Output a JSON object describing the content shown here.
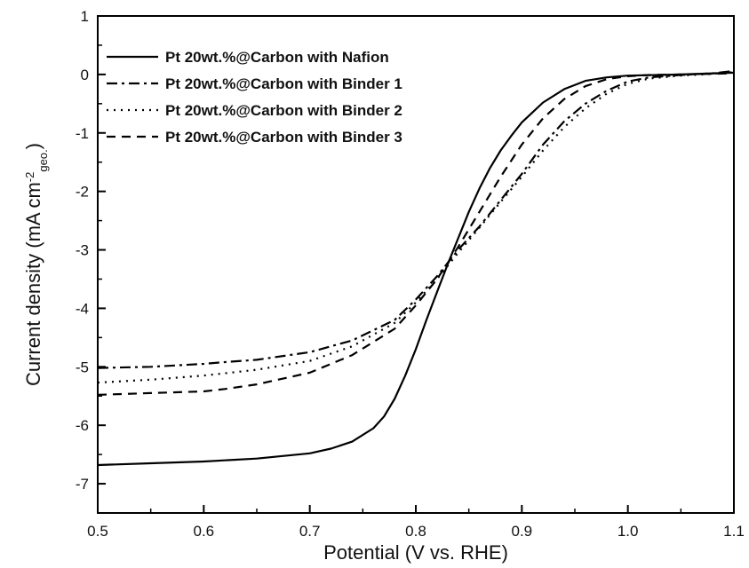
{
  "chart_data": {
    "type": "line",
    "xlabel": "Potential (V vs. RHE)",
    "ylabel": "Current density (mA cm^-2 geo.)",
    "ylabel_parts": {
      "main": "Current density (mA cm",
      "sup": "-2",
      "sub": "geo.",
      "close": ")"
    },
    "xlim": [
      0.5,
      1.1
    ],
    "ylim": [
      -7.5,
      1.0
    ],
    "xticks": [
      0.5,
      0.6,
      0.7,
      0.8,
      0.9,
      1.0,
      1.1
    ],
    "xtick_labels": [
      "0.5",
      "0.6",
      "0.7",
      "0.8",
      "0.9",
      "1.0",
      "1.1"
    ],
    "yticks": [
      1,
      0,
      -1,
      -2,
      -3,
      -4,
      -5,
      -6,
      -7
    ],
    "ytick_labels": [
      "1",
      "0",
      "-1",
      "-2",
      "-3",
      "-4",
      "-5",
      "-6",
      "-7"
    ],
    "legend_position": "top-left",
    "grid": false,
    "series": [
      {
        "name": "Pt 20wt.%@Carbon with Nafion",
        "dash": "solid",
        "x": [
          0.5,
          0.55,
          0.6,
          0.65,
          0.7,
          0.72,
          0.74,
          0.76,
          0.77,
          0.78,
          0.79,
          0.8,
          0.81,
          0.82,
          0.83,
          0.84,
          0.85,
          0.86,
          0.87,
          0.88,
          0.89,
          0.9,
          0.92,
          0.94,
          0.96,
          0.98,
          1.0,
          1.05,
          1.1
        ],
        "y": [
          -6.68,
          -6.65,
          -6.62,
          -6.57,
          -6.48,
          -6.4,
          -6.28,
          -6.05,
          -5.85,
          -5.55,
          -5.15,
          -4.7,
          -4.2,
          -3.72,
          -3.25,
          -2.8,
          -2.35,
          -1.95,
          -1.6,
          -1.3,
          -1.05,
          -0.82,
          -0.48,
          -0.25,
          -0.11,
          -0.05,
          -0.02,
          0.0,
          0.03
        ]
      },
      {
        "name": "Pt 20wt.%@Carbon with Binder 1",
        "dash": "dashdot",
        "x": [
          0.5,
          0.55,
          0.6,
          0.62,
          0.65,
          0.7,
          0.74,
          0.78,
          0.8,
          0.82,
          0.84,
          0.86,
          0.88,
          0.9,
          0.92,
          0.94,
          0.96,
          0.98,
          1.0,
          1.02,
          1.05,
          1.08,
          1.1
        ],
        "y": [
          -5.02,
          -5.0,
          -4.95,
          -4.92,
          -4.88,
          -4.75,
          -4.55,
          -4.2,
          -3.85,
          -3.45,
          -3.0,
          -2.6,
          -2.15,
          -1.7,
          -1.2,
          -0.8,
          -0.5,
          -0.28,
          -0.12,
          -0.05,
          -0.01,
          0.02,
          0.06
        ]
      },
      {
        "name": "Pt 20wt.%@Carbon with Binder 2",
        "dash": "dotted",
        "x": [
          0.5,
          0.55,
          0.6,
          0.65,
          0.7,
          0.74,
          0.78,
          0.8,
          0.82,
          0.84,
          0.86,
          0.88,
          0.9,
          0.92,
          0.94,
          0.96,
          0.98,
          1.0,
          1.02,
          1.05,
          1.08,
          1.1
        ],
        "y": [
          -5.27,
          -5.22,
          -5.15,
          -5.05,
          -4.9,
          -4.65,
          -4.25,
          -3.9,
          -3.5,
          -3.05,
          -2.62,
          -2.18,
          -1.75,
          -1.3,
          -0.9,
          -0.58,
          -0.33,
          -0.16,
          -0.07,
          -0.02,
          0.01,
          0.04
        ]
      },
      {
        "name": "Pt 20wt.%@Carbon with Binder 3",
        "dash": "dashed",
        "x": [
          0.5,
          0.55,
          0.6,
          0.62,
          0.65,
          0.7,
          0.74,
          0.78,
          0.8,
          0.82,
          0.84,
          0.86,
          0.88,
          0.9,
          0.92,
          0.94,
          0.96,
          0.98,
          1.0,
          1.02,
          1.05,
          1.1
        ],
        "y": [
          -5.48,
          -5.45,
          -5.42,
          -5.38,
          -5.3,
          -5.1,
          -4.8,
          -4.35,
          -3.95,
          -3.5,
          -2.95,
          -2.35,
          -1.75,
          -1.2,
          -0.75,
          -0.42,
          -0.2,
          -0.08,
          -0.03,
          -0.01,
          0.0,
          0.02
        ]
      }
    ]
  }
}
